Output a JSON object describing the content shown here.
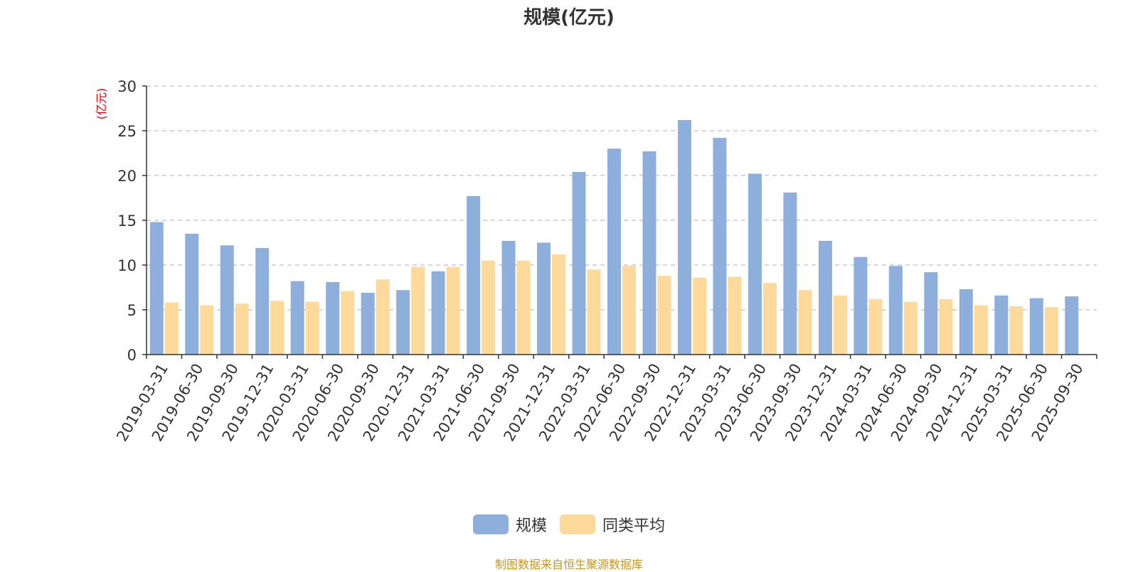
{
  "chart_data": {
    "type": "bar",
    "title": "规模(亿元)",
    "ylabel": "(亿元)",
    "xlabel": "",
    "ylim": [
      0,
      30
    ],
    "yticks": [
      0,
      5,
      10,
      15,
      20,
      25,
      30
    ],
    "grid": true,
    "legend_position": "bottom",
    "categories": [
      "2019-03-31",
      "2019-06-30",
      "2019-09-30",
      "2019-12-31",
      "2020-03-31",
      "2020-06-30",
      "2020-09-30",
      "2020-12-31",
      "2021-03-31",
      "2021-06-30",
      "2021-09-30",
      "2021-12-31",
      "2022-03-31",
      "2022-06-30",
      "2022-09-30",
      "2022-12-31",
      "2023-03-31",
      "2023-06-30",
      "2023-09-30",
      "2023-12-31",
      "2024-03-31",
      "2024-06-30",
      "2024-09-30",
      "2024-12-31",
      "2025-03-31",
      "2025-06-30",
      "2025-09-30"
    ],
    "series": [
      {
        "name": "规模",
        "color": "#8eaedc",
        "values": [
          14.8,
          13.5,
          12.2,
          11.9,
          8.2,
          8.1,
          6.9,
          7.2,
          9.3,
          17.7,
          12.7,
          12.5,
          20.4,
          23.0,
          22.7,
          26.2,
          24.2,
          20.2,
          18.1,
          12.7,
          10.9,
          9.9,
          9.2,
          7.3,
          6.6,
          6.3,
          6.5
        ]
      },
      {
        "name": "同类平均",
        "color": "#fdd99b",
        "values": [
          5.8,
          5.5,
          5.7,
          6.0,
          5.9,
          7.1,
          8.4,
          9.8,
          9.8,
          10.5,
          10.5,
          11.2,
          9.5,
          9.9,
          8.8,
          8.6,
          8.7,
          8.0,
          7.2,
          6.6,
          6.2,
          5.9,
          6.2,
          5.5,
          5.4,
          5.3,
          null
        ]
      }
    ]
  },
  "source_note": "制图数据来自恒生聚源数据库",
  "colors": {
    "axis": "#333333",
    "grid": "#cccccc",
    "ylabel": "#e8000b",
    "source": "#c8961e"
  }
}
